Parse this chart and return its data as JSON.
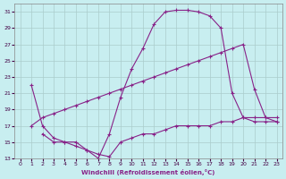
{
  "xlabel": "Windchill (Refroidissement éolien,°C)",
  "bg_color": "#c8eef0",
  "grid_color": "#aacccc",
  "line_color": "#882288",
  "xlim": [
    -0.5,
    23.5
  ],
  "ylim": [
    13,
    32
  ],
  "xticks": [
    0,
    1,
    2,
    3,
    4,
    5,
    6,
    7,
    8,
    9,
    10,
    11,
    12,
    13,
    14,
    15,
    16,
    17,
    18,
    19,
    20,
    21,
    22,
    23
  ],
  "yticks": [
    13,
    15,
    17,
    19,
    21,
    23,
    25,
    27,
    29,
    31
  ],
  "line1_x": [
    1,
    2,
    3,
    4,
    5,
    6,
    7,
    8,
    9,
    10,
    11,
    12,
    13,
    14,
    15,
    16,
    17,
    18,
    19,
    20,
    21,
    22,
    23
  ],
  "line1_y": [
    22,
    17,
    15.5,
    15,
    15,
    14,
    13,
    16,
    20.5,
    24,
    26.5,
    29.5,
    31,
    31.2,
    31.2,
    31,
    30.5,
    29,
    21,
    18,
    17.5,
    17.5,
    17.5
  ],
  "line2_x": [
    1,
    2,
    3,
    4,
    5,
    6,
    7,
    8,
    9,
    10,
    11,
    12,
    13,
    14,
    15,
    16,
    17,
    18,
    19,
    20,
    21,
    22,
    23
  ],
  "line2_y": [
    17,
    18,
    18.5,
    19,
    19.5,
    20,
    20.5,
    21,
    21.5,
    22,
    22.5,
    23,
    23.5,
    24,
    24.5,
    25,
    25.5,
    26,
    26.5,
    27,
    21.5,
    18,
    17.5
  ],
  "line3_x": [
    2,
    3,
    4,
    5,
    6,
    7,
    8,
    9,
    10,
    11,
    12,
    13,
    14,
    15,
    16,
    17,
    18,
    19,
    20,
    21,
    22,
    23
  ],
  "line3_y": [
    16,
    15,
    15,
    14.5,
    14,
    13.5,
    13.2,
    15,
    15.5,
    16,
    16,
    16.5,
    17,
    17,
    17,
    17,
    17.5,
    17.5,
    18,
    18,
    18,
    18
  ],
  "marker": "+"
}
